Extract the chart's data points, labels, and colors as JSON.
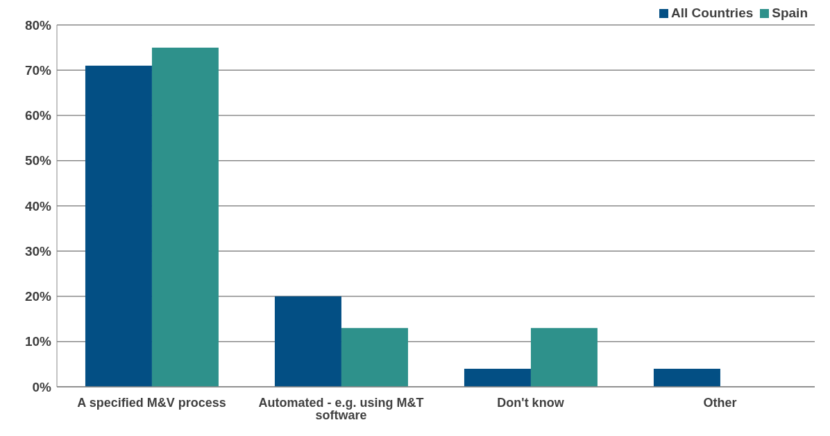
{
  "chart_data": {
    "type": "bar",
    "categories": [
      "A specified M&V process",
      "Automated - e.g. using M&T software",
      "Don't know",
      "Other"
    ],
    "series": [
      {
        "name": "All Countries",
        "color": "#034f84",
        "values": [
          71,
          20,
          4,
          4
        ]
      },
      {
        "name": "Spain",
        "color": "#2e918b",
        "values": [
          75,
          13,
          13,
          0
        ]
      }
    ],
    "ylim": [
      0,
      80
    ],
    "yticks": [
      {
        "value": 0,
        "label": "0%"
      },
      {
        "value": 10,
        "label": "10%"
      },
      {
        "value": 20,
        "label": "20%"
      },
      {
        "value": 30,
        "label": "30%"
      },
      {
        "value": 40,
        "label": "40%"
      },
      {
        "value": 50,
        "label": "50%"
      },
      {
        "value": 60,
        "label": "60%"
      },
      {
        "value": 70,
        "label": "70%"
      },
      {
        "value": 80,
        "label": "80%"
      }
    ],
    "grid": "y",
    "legend": "top right"
  }
}
